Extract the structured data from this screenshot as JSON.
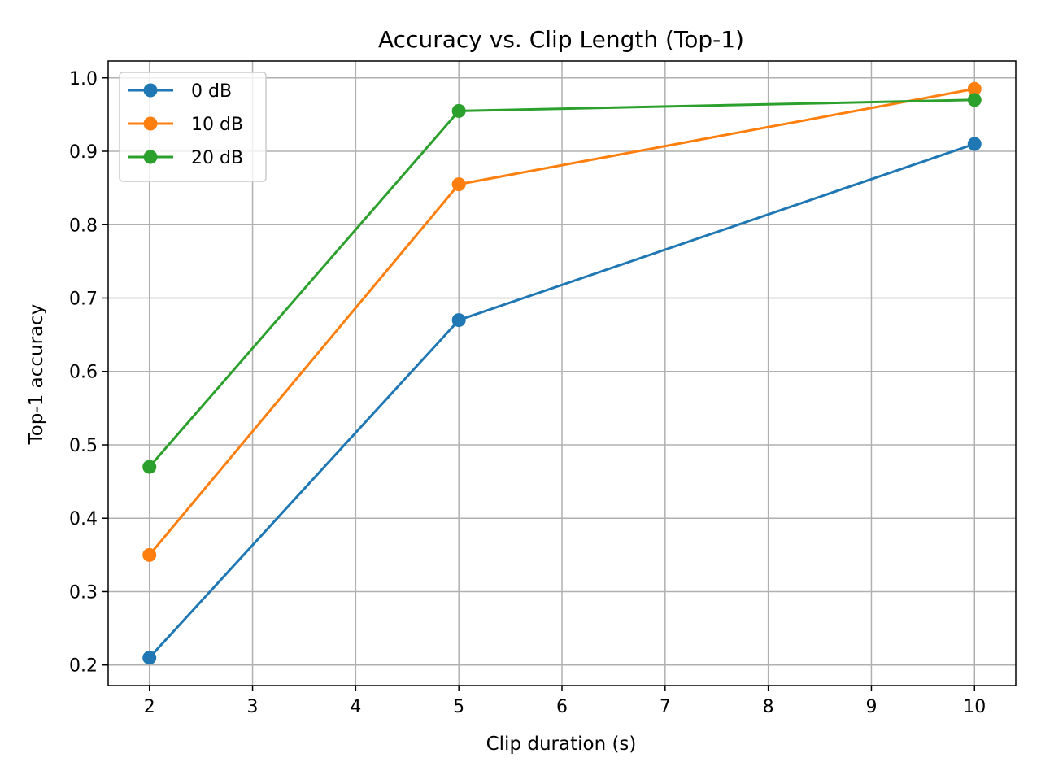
{
  "chart_data": {
    "type": "line",
    "title": "Accuracy vs. Clip Length (Top-1)",
    "xlabel": "Clip duration (s)",
    "ylabel": "Top-1 accuracy",
    "x": [
      2,
      5,
      10
    ],
    "xlim": [
      1.6,
      10.4
    ],
    "ylim": [
      0.172,
      1.023
    ],
    "xticks": [
      2,
      3,
      4,
      5,
      6,
      7,
      8,
      9,
      10
    ],
    "yticks": [
      0.2,
      0.3,
      0.4,
      0.5,
      0.6,
      0.7,
      0.8,
      0.9,
      1.0
    ],
    "xtick_labels": [
      "2",
      "3",
      "4",
      "5",
      "6",
      "7",
      "8",
      "9",
      "10"
    ],
    "ytick_labels": [
      "0.2",
      "0.3",
      "0.4",
      "0.5",
      "0.6",
      "0.7",
      "0.8",
      "0.9",
      "1.0"
    ],
    "grid": true,
    "legend_position": "top-left",
    "series": [
      {
        "name": "0 dB",
        "color": "#1f77b4",
        "values": [
          0.21,
          0.67,
          0.91
        ]
      },
      {
        "name": "10 dB",
        "color": "#ff7f0e",
        "values": [
          0.35,
          0.855,
          0.985
        ]
      },
      {
        "name": "20 dB",
        "color": "#2ca02c",
        "values": [
          0.47,
          0.955,
          0.97
        ]
      }
    ]
  }
}
